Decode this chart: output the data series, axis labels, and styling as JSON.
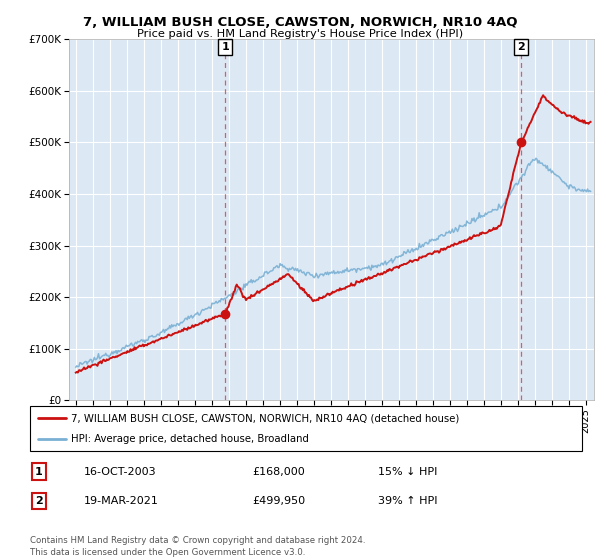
{
  "title": "7, WILLIAM BUSH CLOSE, CAWSTON, NORWICH, NR10 4AQ",
  "subtitle": "Price paid vs. HM Land Registry's House Price Index (HPI)",
  "ylim": [
    0,
    700000
  ],
  "yticks": [
    0,
    100000,
    200000,
    300000,
    400000,
    500000,
    600000,
    700000
  ],
  "ytick_labels": [
    "£0",
    "£100K",
    "£200K",
    "£300K",
    "£400K",
    "£500K",
    "£600K",
    "£700K"
  ],
  "xlim": [
    1994.6,
    2025.5
  ],
  "xticks": [
    1995,
    1996,
    1997,
    1998,
    1999,
    2000,
    2001,
    2002,
    2003,
    2004,
    2005,
    2006,
    2007,
    2008,
    2009,
    2010,
    2011,
    2012,
    2013,
    2014,
    2015,
    2016,
    2017,
    2018,
    2019,
    2020,
    2021,
    2022,
    2023,
    2024,
    2025
  ],
  "background_color": "#dce9f5",
  "grid_color": "#ffffff",
  "sale1_x": 2003.79,
  "sale1_y": 168000,
  "sale2_x": 2021.21,
  "sale2_y": 499950,
  "legend_entry1": "7, WILLIAM BUSH CLOSE, CAWSTON, NORWICH, NR10 4AQ (detached house)",
  "legend_entry2": "HPI: Average price, detached house, Broadland",
  "table_row1": [
    "1",
    "16-OCT-2003",
    "£168,000",
    "15% ↓ HPI"
  ],
  "table_row2": [
    "2",
    "19-MAR-2021",
    "£499,950",
    "39% ↑ HPI"
  ],
  "footer": "Contains HM Land Registry data © Crown copyright and database right 2024.\nThis data is licensed under the Open Government Licence v3.0.",
  "line_color_red": "#cc1111",
  "line_color_blue": "#7ab0d4",
  "marker_color": "#cc1111",
  "dash_color": "#dd4444"
}
